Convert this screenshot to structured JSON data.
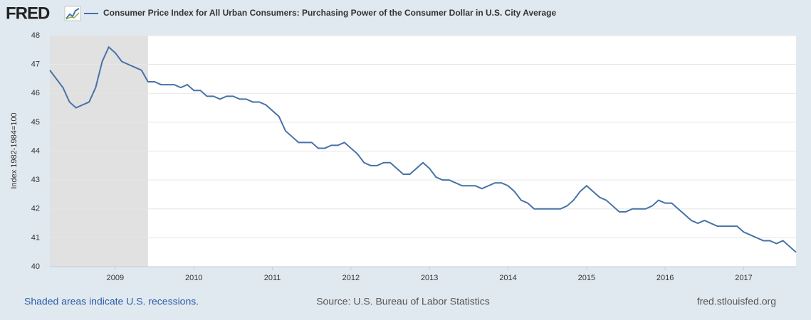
{
  "chart_data": {
    "type": "line",
    "logo": "FRED",
    "ylabel": "Index 1982-1984=100",
    "footer_left": "Shaded areas indicate U.S. recessions.",
    "source": "Source: U.S. Bureau of Labor Statistics",
    "site": "fred.stlouisfed.org",
    "xlim": [
      2008.1667,
      2017.6667
    ],
    "xticks": [
      2009,
      2010,
      2011,
      2012,
      2013,
      2014,
      2015,
      2016,
      2017
    ],
    "ylim": [
      40,
      48
    ],
    "yticks": [
      40,
      41,
      42,
      43,
      44,
      45,
      46,
      47,
      48
    ],
    "grid": true,
    "recession_color": "#e1e1e1",
    "recessions": [
      [
        2008.1667,
        2009.4167
      ]
    ],
    "x": [
      2008.1667,
      2008.25,
      2008.3333,
      2008.4167,
      2008.5,
      2008.5833,
      2008.6667,
      2008.75,
      2008.8333,
      2008.9167,
      2009,
      2009.0833,
      2009.1667,
      2009.25,
      2009.3333,
      2009.4167,
      2009.5,
      2009.5833,
      2009.6667,
      2009.75,
      2009.8333,
      2009.9167,
      2010,
      2010.0833,
      2010.1667,
      2010.25,
      2010.3333,
      2010.4167,
      2010.5,
      2010.5833,
      2010.6667,
      2010.75,
      2010.8333,
      2010.9167,
      2011,
      2011.0833,
      2011.1667,
      2011.25,
      2011.3333,
      2011.4167,
      2011.5,
      2011.5833,
      2011.6667,
      2011.75,
      2011.8333,
      2011.9167,
      2012,
      2012.0833,
      2012.1667,
      2012.25,
      2012.3333,
      2012.4167,
      2012.5,
      2012.5833,
      2012.6667,
      2012.75,
      2012.8333,
      2012.9167,
      2013,
      2013.0833,
      2013.1667,
      2013.25,
      2013.3333,
      2013.4167,
      2013.5,
      2013.5833,
      2013.6667,
      2013.75,
      2013.8333,
      2013.9167,
      2014,
      2014.0833,
      2014.1667,
      2014.25,
      2014.3333,
      2014.4167,
      2014.5,
      2014.5833,
      2014.6667,
      2014.75,
      2014.8333,
      2014.9167,
      2015,
      2015.0833,
      2015.1667,
      2015.25,
      2015.3333,
      2015.4167,
      2015.5,
      2015.5833,
      2015.6667,
      2015.75,
      2015.8333,
      2015.9167,
      2016,
      2016.0833,
      2016.1667,
      2016.25,
      2016.3333,
      2016.4167,
      2016.5,
      2016.5833,
      2016.6667,
      2016.75,
      2016.8333,
      2016.9167,
      2017,
      2017.0833,
      2017.1667,
      2017.25,
      2017.3333,
      2017.4167,
      2017.5,
      2017.5833,
      2017.6667
    ],
    "series": [
      {
        "name": "Consumer Price Index for All Urban Consumers: Purchasing Power of the Consumer Dollar in U.S. City Average",
        "color": "#4572a7",
        "values": [
          46.8,
          46.5,
          46.2,
          45.7,
          45.5,
          45.6,
          45.7,
          46.2,
          47.1,
          47.6,
          47.4,
          47.1,
          47.0,
          46.9,
          46.8,
          46.4,
          46.4,
          46.3,
          46.3,
          46.3,
          46.2,
          46.3,
          46.1,
          46.1,
          45.9,
          45.9,
          45.8,
          45.9,
          45.9,
          45.8,
          45.8,
          45.7,
          45.7,
          45.6,
          45.4,
          45.2,
          44.7,
          44.5,
          44.3,
          44.3,
          44.3,
          44.1,
          44.1,
          44.2,
          44.2,
          44.3,
          44.1,
          43.9,
          43.6,
          43.5,
          43.5,
          43.6,
          43.6,
          43.4,
          43.2,
          43.2,
          43.4,
          43.6,
          43.4,
          43.1,
          43.0,
          43.0,
          42.9,
          42.8,
          42.8,
          42.8,
          42.7,
          42.8,
          42.9,
          42.9,
          42.8,
          42.6,
          42.3,
          42.2,
          42.0,
          42.0,
          42.0,
          42.0,
          42.0,
          42.1,
          42.3,
          42.6,
          42.8,
          42.6,
          42.4,
          42.3,
          42.1,
          41.9,
          41.9,
          42.0,
          42.0,
          42.0,
          42.1,
          42.3,
          42.2,
          42.2,
          42.0,
          41.8,
          41.6,
          41.5,
          41.6,
          41.5,
          41.4,
          41.4,
          41.4,
          41.4,
          41.2,
          41.1,
          41.0,
          40.9,
          40.9,
          40.8,
          40.9,
          40.7,
          40.5
        ]
      }
    ]
  }
}
